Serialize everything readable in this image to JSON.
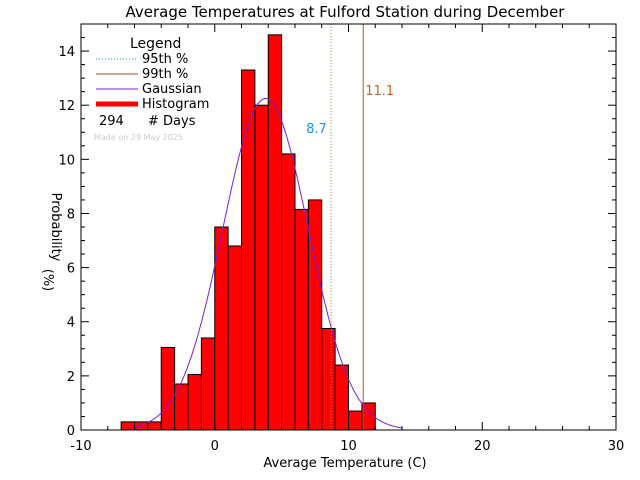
{
  "chart_data": {
    "type": "bar",
    "title": "Average Temperatures at Fulford Station during December",
    "xlabel": "Average Temperature (C)",
    "ylabel_top": "Probability",
    "ylabel_bottom": "(%)",
    "xlim": [
      -10,
      30
    ],
    "ylim": [
      0,
      15
    ],
    "x_ticks": [
      -10,
      0,
      10,
      20,
      30
    ],
    "y_ticks": [
      0,
      2,
      4,
      6,
      8,
      10,
      12,
      14
    ],
    "bin_width": 1,
    "histogram": {
      "bin_starts": [
        -7,
        -6,
        -5,
        -4,
        -3,
        -2,
        -1,
        0,
        1,
        2,
        3,
        4,
        5,
        6,
        7,
        8,
        9,
        10,
        11
      ],
      "values": [
        0.3,
        0.3,
        0.3,
        3.05,
        1.7,
        2.05,
        3.4,
        7.5,
        6.8,
        13.3,
        12.0,
        14.6,
        10.2,
        8.15,
        8.5,
        3.75,
        2.4,
        0.7,
        1.0
      ]
    },
    "gaussian": {
      "mean": 3.8,
      "sd": 3.2,
      "peak": 12.25,
      "x_range": [
        -6,
        14
      ]
    },
    "percentiles": [
      {
        "name": "95th %",
        "value": 8.7,
        "label": "8.7",
        "color": "#d9822b",
        "label_color": "#1e90ff",
        "dashed": true
      },
      {
        "name": "99th %",
        "value": 11.1,
        "label": "11.1",
        "color": "#b8561e",
        "label_color": "#c8641e",
        "dashed": false
      }
    ],
    "legend": {
      "title": "Legend",
      "entries": [
        {
          "label": "95th %",
          "color": "#1e90ff",
          "style": "dotted"
        },
        {
          "label": "99th %",
          "color": "#a0522d",
          "style": "solid"
        },
        {
          "label": "Gaussian",
          "color": "#7b1fd6",
          "style": "solid"
        },
        {
          "label": "Histogram",
          "color": "#ff0000",
          "style": "thick"
        }
      ],
      "count_value": "294",
      "count_label": "# Days",
      "made_on": "Made on 29 May 2025",
      "placement": "top-left"
    },
    "colors": {
      "bar_fill": "#ff0000",
      "bar_edge": "#000000",
      "gaussian": "#7b1fd6"
    }
  }
}
